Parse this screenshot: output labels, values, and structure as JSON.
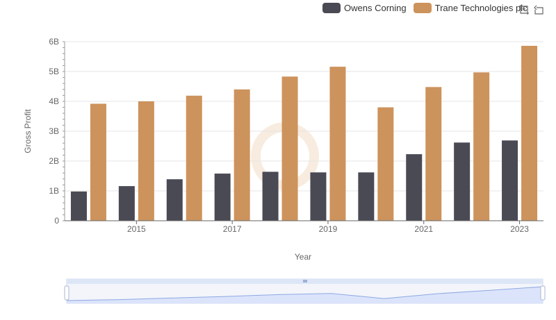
{
  "colors": {
    "owens": "#4a4a55",
    "trane": "#cd935c",
    "grid": "#e6e6e6",
    "axis": "#666666",
    "zoom_fill": "#dbe4fb",
    "zoom_line": "#8fa8e0"
  },
  "toolbox": {
    "icons": [
      "zoom-select-icon",
      "zoom-reset-icon"
    ]
  },
  "chart_data": {
    "type": "bar",
    "xlabel": "Year",
    "ylabel": "Gross Profit",
    "ylim": [
      0,
      6000000000
    ],
    "y_ticks": [
      "0",
      "1B",
      "2B",
      "3B",
      "4B",
      "5B",
      "6B"
    ],
    "x_tick_labels": [
      "2015",
      "2017",
      "2019",
      "2021",
      "2023"
    ],
    "categories": [
      "2014",
      "2015",
      "2016",
      "2017",
      "2018",
      "2019",
      "2020",
      "2021",
      "2022",
      "2023"
    ],
    "series": [
      {
        "name": "Owens Corning",
        "color": "#4a4a55",
        "values": [
          980000000,
          1160000000,
          1390000000,
          1580000000,
          1640000000,
          1620000000,
          1620000000,
          2230000000,
          2620000000,
          2690000000
        ]
      },
      {
        "name": "Trane Technologies plc",
        "color": "#cd935c",
        "values": [
          3920000000,
          4000000000,
          4190000000,
          4400000000,
          4830000000,
          5160000000,
          3800000000,
          4480000000,
          4970000000,
          5860000000
        ]
      }
    ],
    "legend_position": "top-right",
    "grid": true,
    "data_zoom": true
  }
}
